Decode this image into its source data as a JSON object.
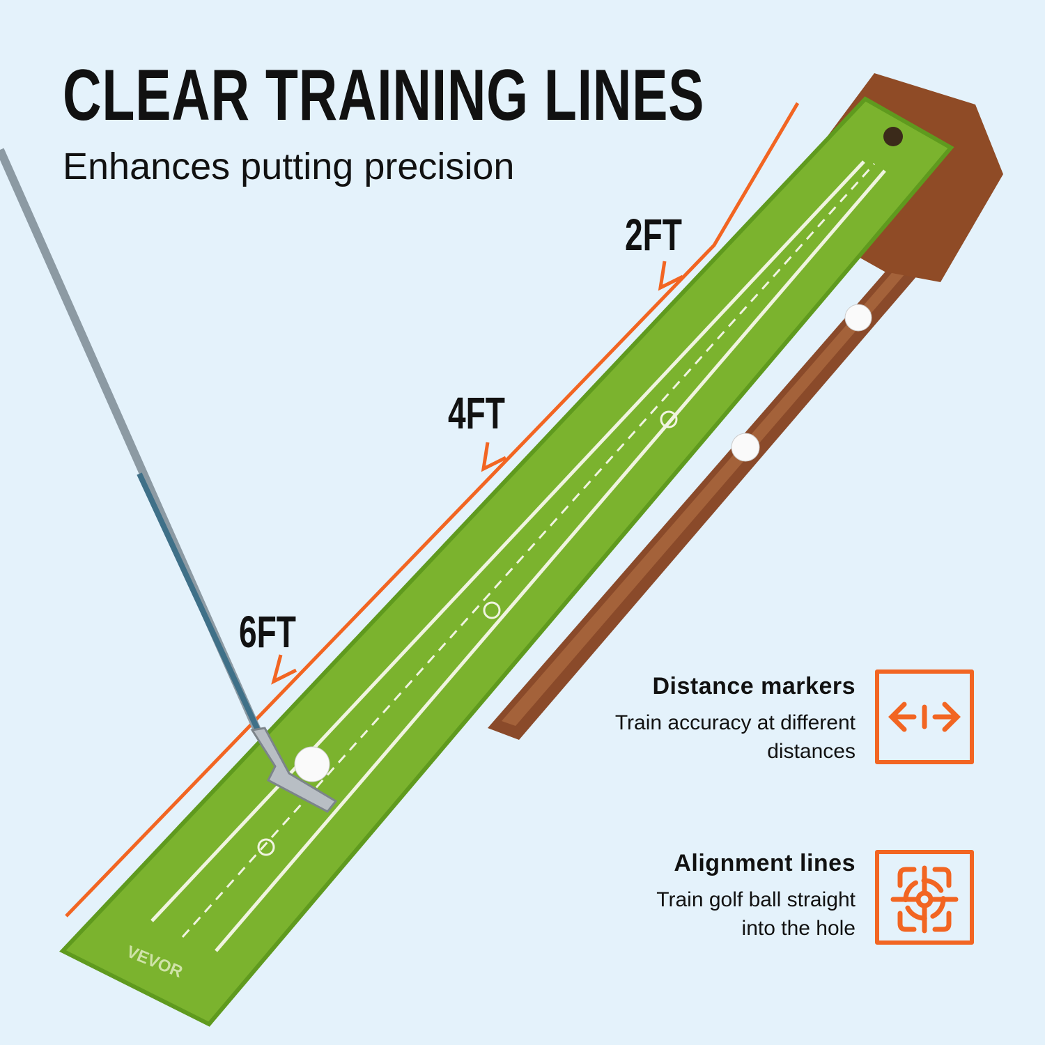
{
  "heading": {
    "title": "CLEAR TRAINING LINES",
    "subtitle": "Enhances putting precision"
  },
  "distance_labels": [
    "2FT",
    "4FT",
    "6FT"
  ],
  "features": [
    {
      "title": "Distance markers",
      "description_lines": [
        "Train accuracy at different",
        "distances"
      ],
      "icon": "distance-arrows-icon"
    },
    {
      "title": "Alignment lines",
      "description_lines": [
        "Train golf ball straight",
        "into the hole"
      ],
      "icon": "target-crosshair-icon"
    }
  ],
  "brand": "VEVOR",
  "colors": {
    "background": "#e4f2fb",
    "accent": "#f26522",
    "mat": "#7bb32e",
    "wood": "#8a4a2a"
  }
}
